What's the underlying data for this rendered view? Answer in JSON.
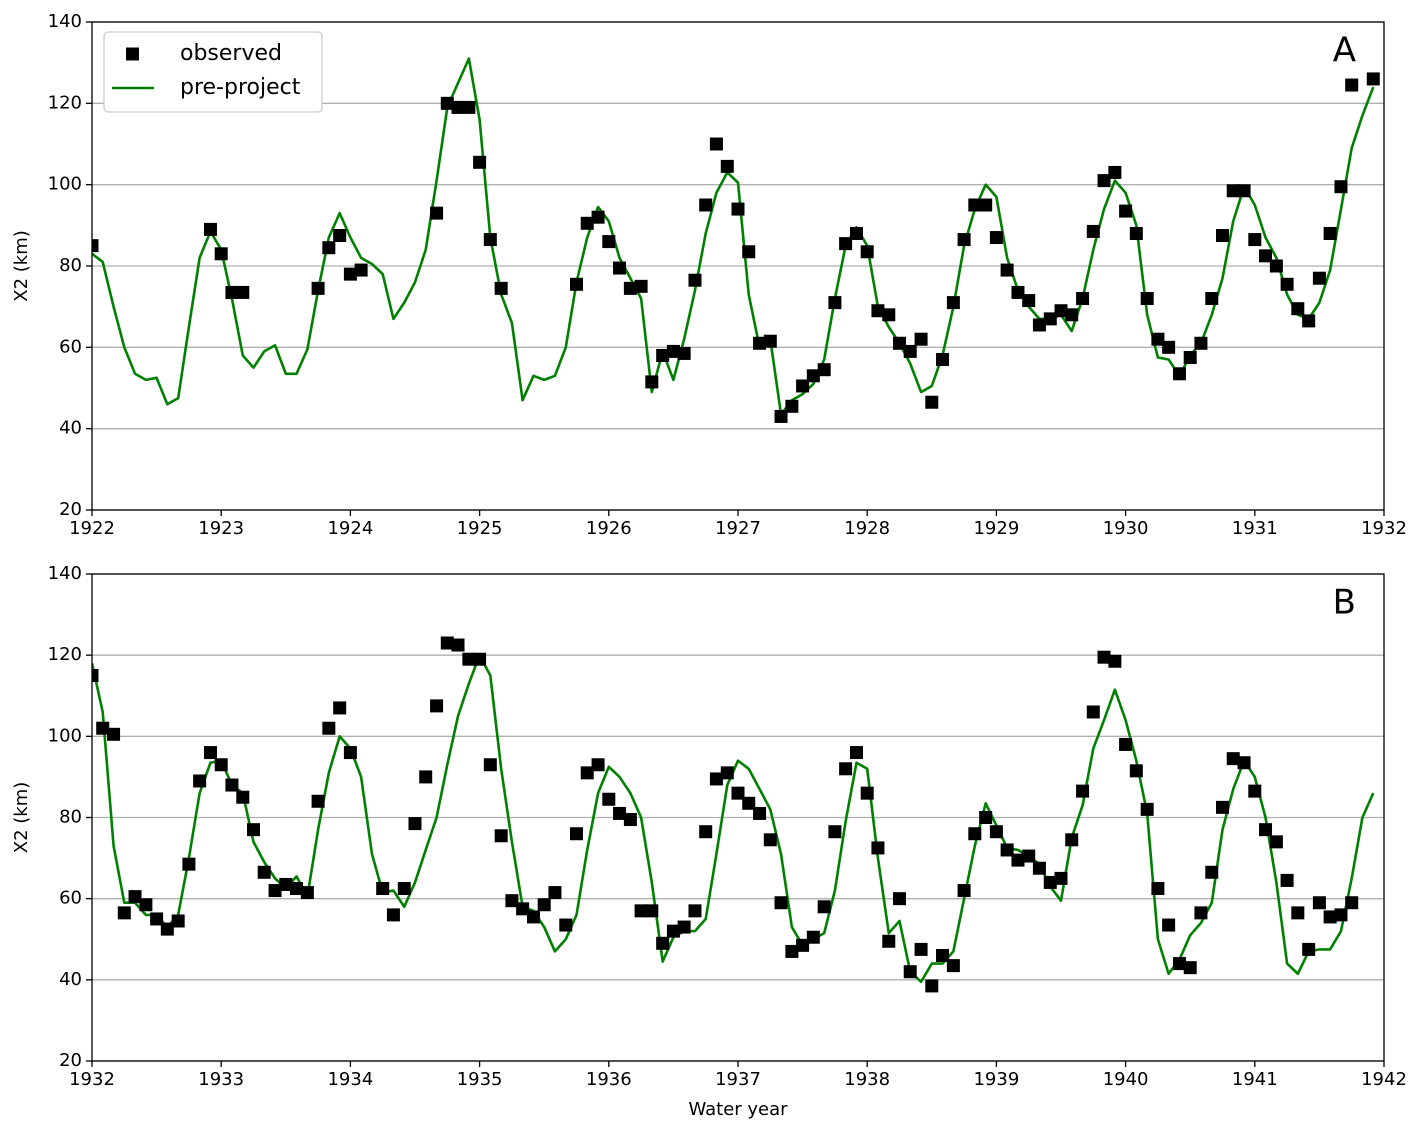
{
  "chart_data": [
    {
      "type": "line",
      "annotation": "A",
      "ylabel": "X2 (km)",
      "legend": "upper left",
      "grid": "y",
      "xlim": [
        1922,
        1932
      ],
      "xticks": [
        1922,
        1923,
        1924,
        1925,
        1926,
        1927,
        1928,
        1929,
        1930,
        1931,
        1932
      ],
      "ylim": [
        20,
        140
      ],
      "yticks": [
        20,
        40,
        60,
        80,
        100,
        120,
        140
      ],
      "x": [
        1922,
        1922.083,
        1922.167,
        1922.25,
        1922.333,
        1922.417,
        1922.5,
        1922.583,
        1922.667,
        1922.75,
        1922.833,
        1922.917,
        1923,
        1923.083,
        1923.167,
        1923.25,
        1923.333,
        1923.417,
        1923.5,
        1923.583,
        1923.667,
        1923.75,
        1923.833,
        1923.917,
        1924,
        1924.083,
        1924.167,
        1924.25,
        1924.333,
        1924.417,
        1924.5,
        1924.583,
        1924.667,
        1924.75,
        1924.833,
        1924.917,
        1925,
        1925.083,
        1925.167,
        1925.25,
        1925.333,
        1925.417,
        1925.5,
        1925.583,
        1925.667,
        1925.75,
        1925.833,
        1925.917,
        1926,
        1926.083,
        1926.167,
        1926.25,
        1926.333,
        1926.417,
        1926.5,
        1926.583,
        1926.667,
        1926.75,
        1926.833,
        1926.917,
        1927,
        1927.083,
        1927.167,
        1927.25,
        1927.333,
        1927.417,
        1927.5,
        1927.583,
        1927.667,
        1927.75,
        1927.833,
        1927.917,
        1928,
        1928.083,
        1928.167,
        1928.25,
        1928.333,
        1928.417,
        1928.5,
        1928.583,
        1928.667,
        1928.75,
        1928.833,
        1928.917,
        1929,
        1929.083,
        1929.167,
        1929.25,
        1929.333,
        1929.417,
        1929.5,
        1929.583,
        1929.667,
        1929.75,
        1929.833,
        1929.917,
        1930,
        1930.083,
        1930.167,
        1930.25,
        1930.333,
        1930.417,
        1930.5,
        1930.583,
        1930.667,
        1930.75,
        1930.833,
        1930.917,
        1931,
        1931.083,
        1931.167,
        1931.25,
        1931.333,
        1931.417,
        1931.5,
        1931.583,
        1931.667,
        1931.75,
        1931.833,
        1931.917
      ],
      "series": [
        {
          "name": "observed",
          "color": "#000000",
          "marker": "square",
          "values": [
            85,
            null,
            null,
            null,
            null,
            null,
            null,
            null,
            null,
            null,
            null,
            89,
            83,
            73.5,
            73.5,
            null,
            null,
            null,
            null,
            null,
            null,
            74.5,
            84.5,
            87.5,
            78,
            79,
            null,
            null,
            null,
            null,
            null,
            null,
            93,
            120,
            119,
            119,
            105.5,
            86.5,
            74.5,
            null,
            null,
            null,
            null,
            null,
            null,
            75.5,
            90.5,
            92,
            86,
            79.5,
            74.5,
            75,
            51.5,
            58,
            59,
            58.5,
            76.5,
            95,
            110,
            104.5,
            94,
            83.5,
            61,
            61.5,
            43,
            45.5,
            50.5,
            53,
            54.5,
            71,
            85.5,
            88,
            83.5,
            69,
            68,
            61,
            59,
            62,
            46.5,
            57,
            71,
            86.5,
            95,
            95,
            87,
            79,
            73.5,
            71.5,
            65.5,
            67,
            69,
            68,
            72,
            88.5,
            101,
            103,
            93.5,
            88,
            72,
            62,
            60,
            53.5,
            57.5,
            61,
            72,
            87.5,
            98.5,
            98.5,
            86.5,
            82.5,
            80,
            75.5,
            69.5,
            66.5,
            77,
            88,
            99.5,
            124.5,
            null,
            126
          ]
        },
        {
          "name": "pre-project",
          "color": "#008000",
          "values": [
            83,
            81,
            70,
            60,
            53.5,
            52,
            52.5,
            46,
            47.5,
            65,
            82,
            88.5,
            84,
            72,
            58,
            55,
            59,
            60.5,
            53.5,
            53.5,
            59.5,
            74,
            87,
            93,
            87,
            82,
            80.5,
            78,
            67,
            71,
            76,
            84,
            101,
            119,
            125,
            131,
            116,
            87,
            73,
            66,
            47,
            53,
            52,
            53,
            60,
            76,
            87,
            94.5,
            91,
            82,
            77,
            72,
            49,
            59,
            52,
            62,
            74,
            88,
            98,
            103,
            100.5,
            73,
            60,
            62,
            43.5,
            47,
            48.5,
            51,
            57,
            72,
            85,
            89.5,
            85,
            70,
            65,
            61,
            56,
            49,
            50.5,
            58,
            70,
            85,
            94,
            100,
            97,
            82,
            74,
            70,
            67,
            67,
            68,
            64,
            72,
            84,
            94,
            101,
            98,
            90,
            68,
            57.5,
            57,
            53,
            58,
            61,
            68,
            77,
            91,
            99.5,
            95,
            87,
            82,
            73,
            68,
            67,
            71,
            79,
            94,
            109,
            117,
            124
          ]
        }
      ]
    },
    {
      "type": "line",
      "annotation": "B",
      "ylabel": "X2 (km)",
      "xlabel": "Water year",
      "grid": "y",
      "xlim": [
        1932,
        1942
      ],
      "xticks": [
        1932,
        1933,
        1934,
        1935,
        1936,
        1937,
        1938,
        1939,
        1940,
        1941,
        1942
      ],
      "ylim": [
        20,
        140
      ],
      "yticks": [
        20,
        40,
        60,
        80,
        100,
        120,
        140
      ],
      "x": [
        1932,
        1932.083,
        1932.167,
        1932.25,
        1932.333,
        1932.417,
        1932.5,
        1932.583,
        1932.667,
        1932.75,
        1932.833,
        1932.917,
        1933,
        1933.083,
        1933.167,
        1933.25,
        1933.333,
        1933.417,
        1933.5,
        1933.583,
        1933.667,
        1933.75,
        1933.833,
        1933.917,
        1934,
        1934.083,
        1934.167,
        1934.25,
        1934.333,
        1934.417,
        1934.5,
        1934.583,
        1934.667,
        1934.75,
        1934.833,
        1934.917,
        1935,
        1935.083,
        1935.167,
        1935.25,
        1935.333,
        1935.417,
        1935.5,
        1935.583,
        1935.667,
        1935.75,
        1935.833,
        1935.917,
        1936,
        1936.083,
        1936.167,
        1936.25,
        1936.333,
        1936.417,
        1936.5,
        1936.583,
        1936.667,
        1936.75,
        1936.833,
        1936.917,
        1937,
        1937.083,
        1937.167,
        1937.25,
        1937.333,
        1937.417,
        1937.5,
        1937.583,
        1937.667,
        1937.75,
        1937.833,
        1937.917,
        1938,
        1938.083,
        1938.167,
        1938.25,
        1938.333,
        1938.417,
        1938.5,
        1938.583,
        1938.667,
        1938.75,
        1938.833,
        1938.917,
        1939,
        1939.083,
        1939.167,
        1939.25,
        1939.333,
        1939.417,
        1939.5,
        1939.583,
        1939.667,
        1939.75,
        1939.833,
        1939.917,
        1940,
        1940.083,
        1940.167,
        1940.25,
        1940.333,
        1940.417,
        1940.5,
        1940.583,
        1940.667,
        1940.75,
        1940.833,
        1940.917,
        1941,
        1941.083,
        1941.167,
        1941.25,
        1941.333,
        1941.417,
        1941.5,
        1941.583,
        1941.667,
        1941.75,
        1941.833,
        1941.917
      ],
      "series": [
        {
          "color": "#000000",
          "marker": "square",
          "values": [
            115,
            102,
            100.5,
            56.5,
            60.5,
            58.5,
            55,
            52.5,
            54.5,
            68.5,
            89,
            96,
            93,
            88,
            85,
            77,
            66.5,
            62,
            63.5,
            62.5,
            61.5,
            84,
            102,
            107,
            96,
            null,
            null,
            62.5,
            56,
            62.5,
            78.5,
            90,
            107.5,
            123,
            122.5,
            119,
            119,
            93,
            75.5,
            59.5,
            57.5,
            55.5,
            58.5,
            61.5,
            53.5,
            76,
            91,
            93,
            84.5,
            81,
            79.5,
            57,
            57,
            49,
            52,
            53,
            57,
            76.5,
            89.5,
            91,
            86,
            83.5,
            81,
            74.5,
            59,
            47,
            48.5,
            50.5,
            58,
            76.5,
            92,
            96,
            86,
            72.5,
            49.5,
            60,
            42,
            47.5,
            38.5,
            46,
            43.5,
            62,
            76,
            80,
            76.5,
            72,
            69.5,
            70.5,
            67.5,
            64,
            65,
            74.5,
            86.5,
            106,
            119.5,
            118.5,
            98,
            91.5,
            82,
            62.5,
            53.5,
            44,
            43,
            56.5,
            66.5,
            82.5,
            94.5,
            93.5,
            86.5,
            77,
            74,
            64.5,
            56.5,
            47.5,
            59,
            55.5,
            56,
            59,
            null,
            null
          ]
        },
        {
          "color": "#008000",
          "values": [
            118,
            106,
            73,
            59,
            59,
            56,
            56,
            53,
            56,
            70,
            86,
            93.5,
            94,
            88,
            86,
            74,
            69,
            65,
            62.5,
            65.5,
            60.5,
            77,
            91,
            100,
            97,
            90,
            71,
            61.5,
            62,
            58,
            64,
            72,
            80,
            93,
            105,
            113,
            120,
            115,
            92,
            74,
            58,
            57,
            53,
            47,
            50,
            56,
            72,
            86,
            92.5,
            90,
            86,
            80,
            64,
            44.5,
            50.5,
            52,
            52,
            55,
            71,
            88,
            94,
            92,
            87,
            82,
            71,
            53,
            48.5,
            50,
            51.5,
            62,
            79,
            93.5,
            92,
            70,
            51.5,
            54.5,
            42,
            39.5,
            44,
            44,
            47,
            60,
            73,
            83.5,
            78,
            72.5,
            72,
            70.5,
            68.5,
            63,
            59.5,
            75,
            83,
            97,
            104,
            111.5,
            104,
            94,
            81,
            50,
            41.5,
            45,
            51,
            54,
            59,
            77,
            87,
            94,
            90,
            80,
            64,
            44,
            41.5,
            47,
            47.5,
            47.5,
            52,
            65,
            80,
            86
          ]
        }
      ]
    }
  ]
}
